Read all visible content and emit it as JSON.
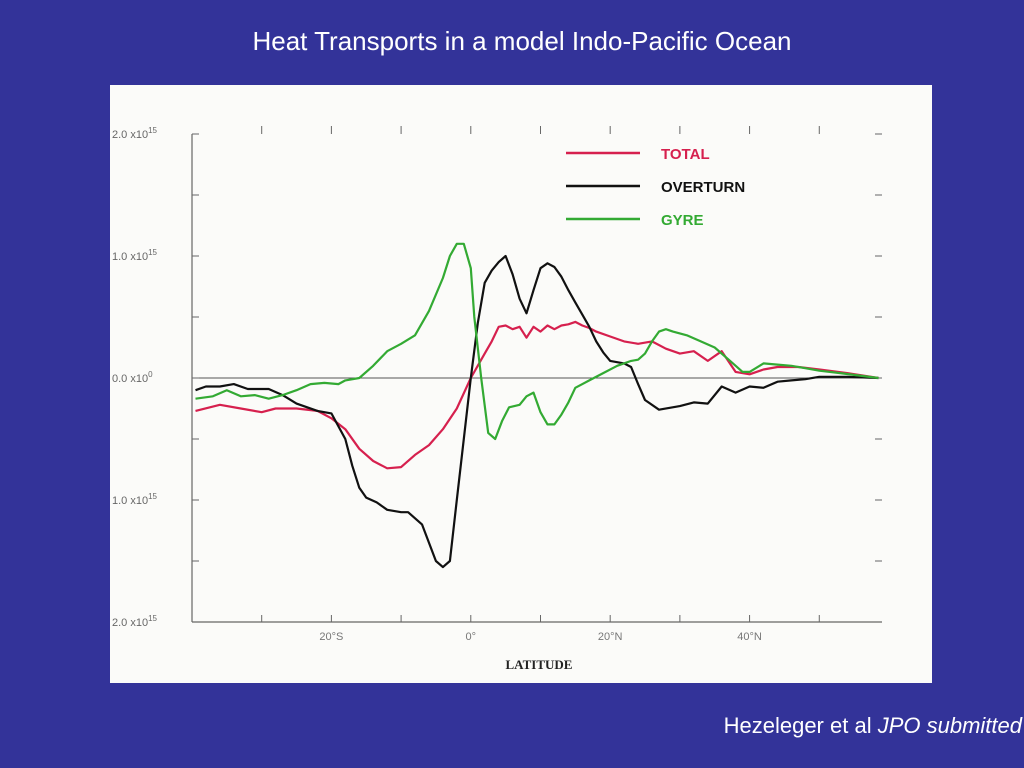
{
  "slide": {
    "title": "Heat Transports in a model Indo-Pacific Ocean",
    "credit_authors": "Hezeleger et al",
    "credit_journal": "JPO submitted"
  },
  "chart_data": {
    "type": "line",
    "xlabel": "LATITUDE",
    "ylabel": "",
    "xlim": [
      -40,
      59
    ],
    "ylim": [
      -2.0,
      2.0
    ],
    "y_scale_label": "x10^15",
    "x_ticks": [
      {
        "value": -20,
        "label": "20°S"
      },
      {
        "value": 0,
        "label": "0°"
      },
      {
        "value": 20,
        "label": "20°N"
      },
      {
        "value": 40,
        "label": "40°N"
      }
    ],
    "y_ticks": [
      {
        "value": 2.0,
        "label": "2.0 x10",
        "exp": "15"
      },
      {
        "value": 1.0,
        "label": "1.0 x10",
        "exp": "15"
      },
      {
        "value": 0.0,
        "label": "0.0 x10",
        "exp": "0"
      },
      {
        "value": -1.0,
        "label": "1.0 x10",
        "exp": "15"
      },
      {
        "value": -2.0,
        "label": "2.0 x10",
        "exp": "15"
      }
    ],
    "grid": false,
    "zero_line": true,
    "legend_position": "top-right",
    "series": [
      {
        "name": "TOTAL",
        "color": "#d6204e",
        "points": [
          [
            -39.5,
            -0.27
          ],
          [
            -36,
            -0.22
          ],
          [
            -33,
            -0.25
          ],
          [
            -30,
            -0.28
          ],
          [
            -28,
            -0.25
          ],
          [
            -25,
            -0.25
          ],
          [
            -22,
            -0.27
          ],
          [
            -20,
            -0.33
          ],
          [
            -18,
            -0.42
          ],
          [
            -16,
            -0.58
          ],
          [
            -14,
            -0.68
          ],
          [
            -12,
            -0.74
          ],
          [
            -10,
            -0.73
          ],
          [
            -8,
            -0.63
          ],
          [
            -6,
            -0.55
          ],
          [
            -4,
            -0.42
          ],
          [
            -2,
            -0.25
          ],
          [
            0,
            0.0
          ],
          [
            2,
            0.2
          ],
          [
            3,
            0.3
          ],
          [
            4,
            0.42
          ],
          [
            5,
            0.43
          ],
          [
            6,
            0.4
          ],
          [
            7,
            0.42
          ],
          [
            8,
            0.33
          ],
          [
            9,
            0.42
          ],
          [
            10,
            0.38
          ],
          [
            11,
            0.43
          ],
          [
            12,
            0.4
          ],
          [
            13,
            0.43
          ],
          [
            14,
            0.44
          ],
          [
            15,
            0.46
          ],
          [
            16,
            0.43
          ],
          [
            17,
            0.41
          ],
          [
            18,
            0.38
          ],
          [
            20,
            0.34
          ],
          [
            22,
            0.3
          ],
          [
            24,
            0.28
          ],
          [
            26,
            0.3
          ],
          [
            28,
            0.24
          ],
          [
            30,
            0.2
          ],
          [
            32,
            0.22
          ],
          [
            34,
            0.14
          ],
          [
            36,
            0.22
          ],
          [
            38,
            0.05
          ],
          [
            40,
            0.03
          ],
          [
            42,
            0.07
          ],
          [
            44,
            0.09
          ],
          [
            47,
            0.09
          ],
          [
            50,
            0.07
          ],
          [
            54,
            0.04
          ],
          [
            58.5,
            0.0
          ]
        ]
      },
      {
        "name": "OVERTURN",
        "color": "#111111",
        "points": [
          [
            -39.5,
            -0.1
          ],
          [
            -38,
            -0.07
          ],
          [
            -36,
            -0.07
          ],
          [
            -34,
            -0.05
          ],
          [
            -32,
            -0.09
          ],
          [
            -29,
            -0.09
          ],
          [
            -27,
            -0.14
          ],
          [
            -25,
            -0.21
          ],
          [
            -22,
            -0.27
          ],
          [
            -20,
            -0.29
          ],
          [
            -18,
            -0.5
          ],
          [
            -17,
            -0.72
          ],
          [
            -16,
            -0.9
          ],
          [
            -15,
            -0.98
          ],
          [
            -13.5,
            -1.02
          ],
          [
            -12,
            -1.08
          ],
          [
            -10,
            -1.1
          ],
          [
            -9,
            -1.1
          ],
          [
            -7,
            -1.2
          ],
          [
            -5,
            -1.5
          ],
          [
            -4,
            -1.55
          ],
          [
            -3,
            -1.5
          ],
          [
            -2,
            -1.0
          ],
          [
            -1,
            -0.5
          ],
          [
            0,
            0.0
          ],
          [
            1,
            0.45
          ],
          [
            2,
            0.78
          ],
          [
            3,
            0.88
          ],
          [
            4,
            0.95
          ],
          [
            5,
            1.0
          ],
          [
            6,
            0.85
          ],
          [
            7,
            0.65
          ],
          [
            8,
            0.53
          ],
          [
            9,
            0.72
          ],
          [
            10,
            0.9
          ],
          [
            11,
            0.94
          ],
          [
            12,
            0.91
          ],
          [
            13,
            0.83
          ],
          [
            14,
            0.72
          ],
          [
            15,
            0.62
          ],
          [
            16,
            0.52
          ],
          [
            17,
            0.42
          ],
          [
            18,
            0.3
          ],
          [
            19,
            0.21
          ],
          [
            20,
            0.14
          ],
          [
            22,
            0.12
          ],
          [
            23,
            0.09
          ],
          [
            24,
            -0.05
          ],
          [
            25,
            -0.18
          ],
          [
            27,
            -0.26
          ],
          [
            30,
            -0.23
          ],
          [
            32,
            -0.2
          ],
          [
            34,
            -0.21
          ],
          [
            36,
            -0.07
          ],
          [
            38,
            -0.12
          ],
          [
            40,
            -0.07
          ],
          [
            42,
            -0.08
          ],
          [
            44,
            -0.03
          ],
          [
            46,
            -0.02
          ],
          [
            48,
            -0.01
          ],
          [
            50,
            0.01
          ],
          [
            54,
            0.01
          ],
          [
            58.5,
            0.0
          ]
        ]
      },
      {
        "name": "GYRE",
        "color": "#33aa33",
        "points": [
          [
            -39.5,
            -0.17
          ],
          [
            -37,
            -0.15
          ],
          [
            -35,
            -0.1
          ],
          [
            -33,
            -0.15
          ],
          [
            -31,
            -0.14
          ],
          [
            -29,
            -0.17
          ],
          [
            -27,
            -0.14
          ],
          [
            -25,
            -0.1
          ],
          [
            -23,
            -0.05
          ],
          [
            -21,
            -0.04
          ],
          [
            -19,
            -0.05
          ],
          [
            -18,
            -0.02
          ],
          [
            -16,
            0.0
          ],
          [
            -14,
            0.1
          ],
          [
            -12,
            0.22
          ],
          [
            -10,
            0.28
          ],
          [
            -8,
            0.35
          ],
          [
            -6,
            0.55
          ],
          [
            -4,
            0.82
          ],
          [
            -3,
            1.0
          ],
          [
            -2,
            1.1
          ],
          [
            -1,
            1.1
          ],
          [
            0,
            0.9
          ],
          [
            0.5,
            0.5
          ],
          [
            1.5,
            0.0
          ],
          [
            2.5,
            -0.45
          ],
          [
            3.5,
            -0.5
          ],
          [
            4.5,
            -0.35
          ],
          [
            5.5,
            -0.24
          ],
          [
            7,
            -0.22
          ],
          [
            8,
            -0.15
          ],
          [
            9,
            -0.12
          ],
          [
            10,
            -0.28
          ],
          [
            11,
            -0.38
          ],
          [
            12,
            -0.38
          ],
          [
            13,
            -0.3
          ],
          [
            14,
            -0.2
          ],
          [
            15,
            -0.08
          ],
          [
            17,
            -0.02
          ],
          [
            19,
            0.04
          ],
          [
            21,
            0.1
          ],
          [
            23,
            0.14
          ],
          [
            24,
            0.15
          ],
          [
            25,
            0.2
          ],
          [
            26,
            0.3
          ],
          [
            27,
            0.38
          ],
          [
            28,
            0.4
          ],
          [
            29,
            0.38
          ],
          [
            31,
            0.35
          ],
          [
            33,
            0.3
          ],
          [
            35,
            0.25
          ],
          [
            37,
            0.15
          ],
          [
            39,
            0.05
          ],
          [
            40,
            0.05
          ],
          [
            42,
            0.12
          ],
          [
            44,
            0.11
          ],
          [
            46,
            0.1
          ],
          [
            48,
            0.08
          ],
          [
            50,
            0.06
          ],
          [
            53,
            0.04
          ],
          [
            58.5,
            0.0
          ]
        ]
      }
    ]
  }
}
